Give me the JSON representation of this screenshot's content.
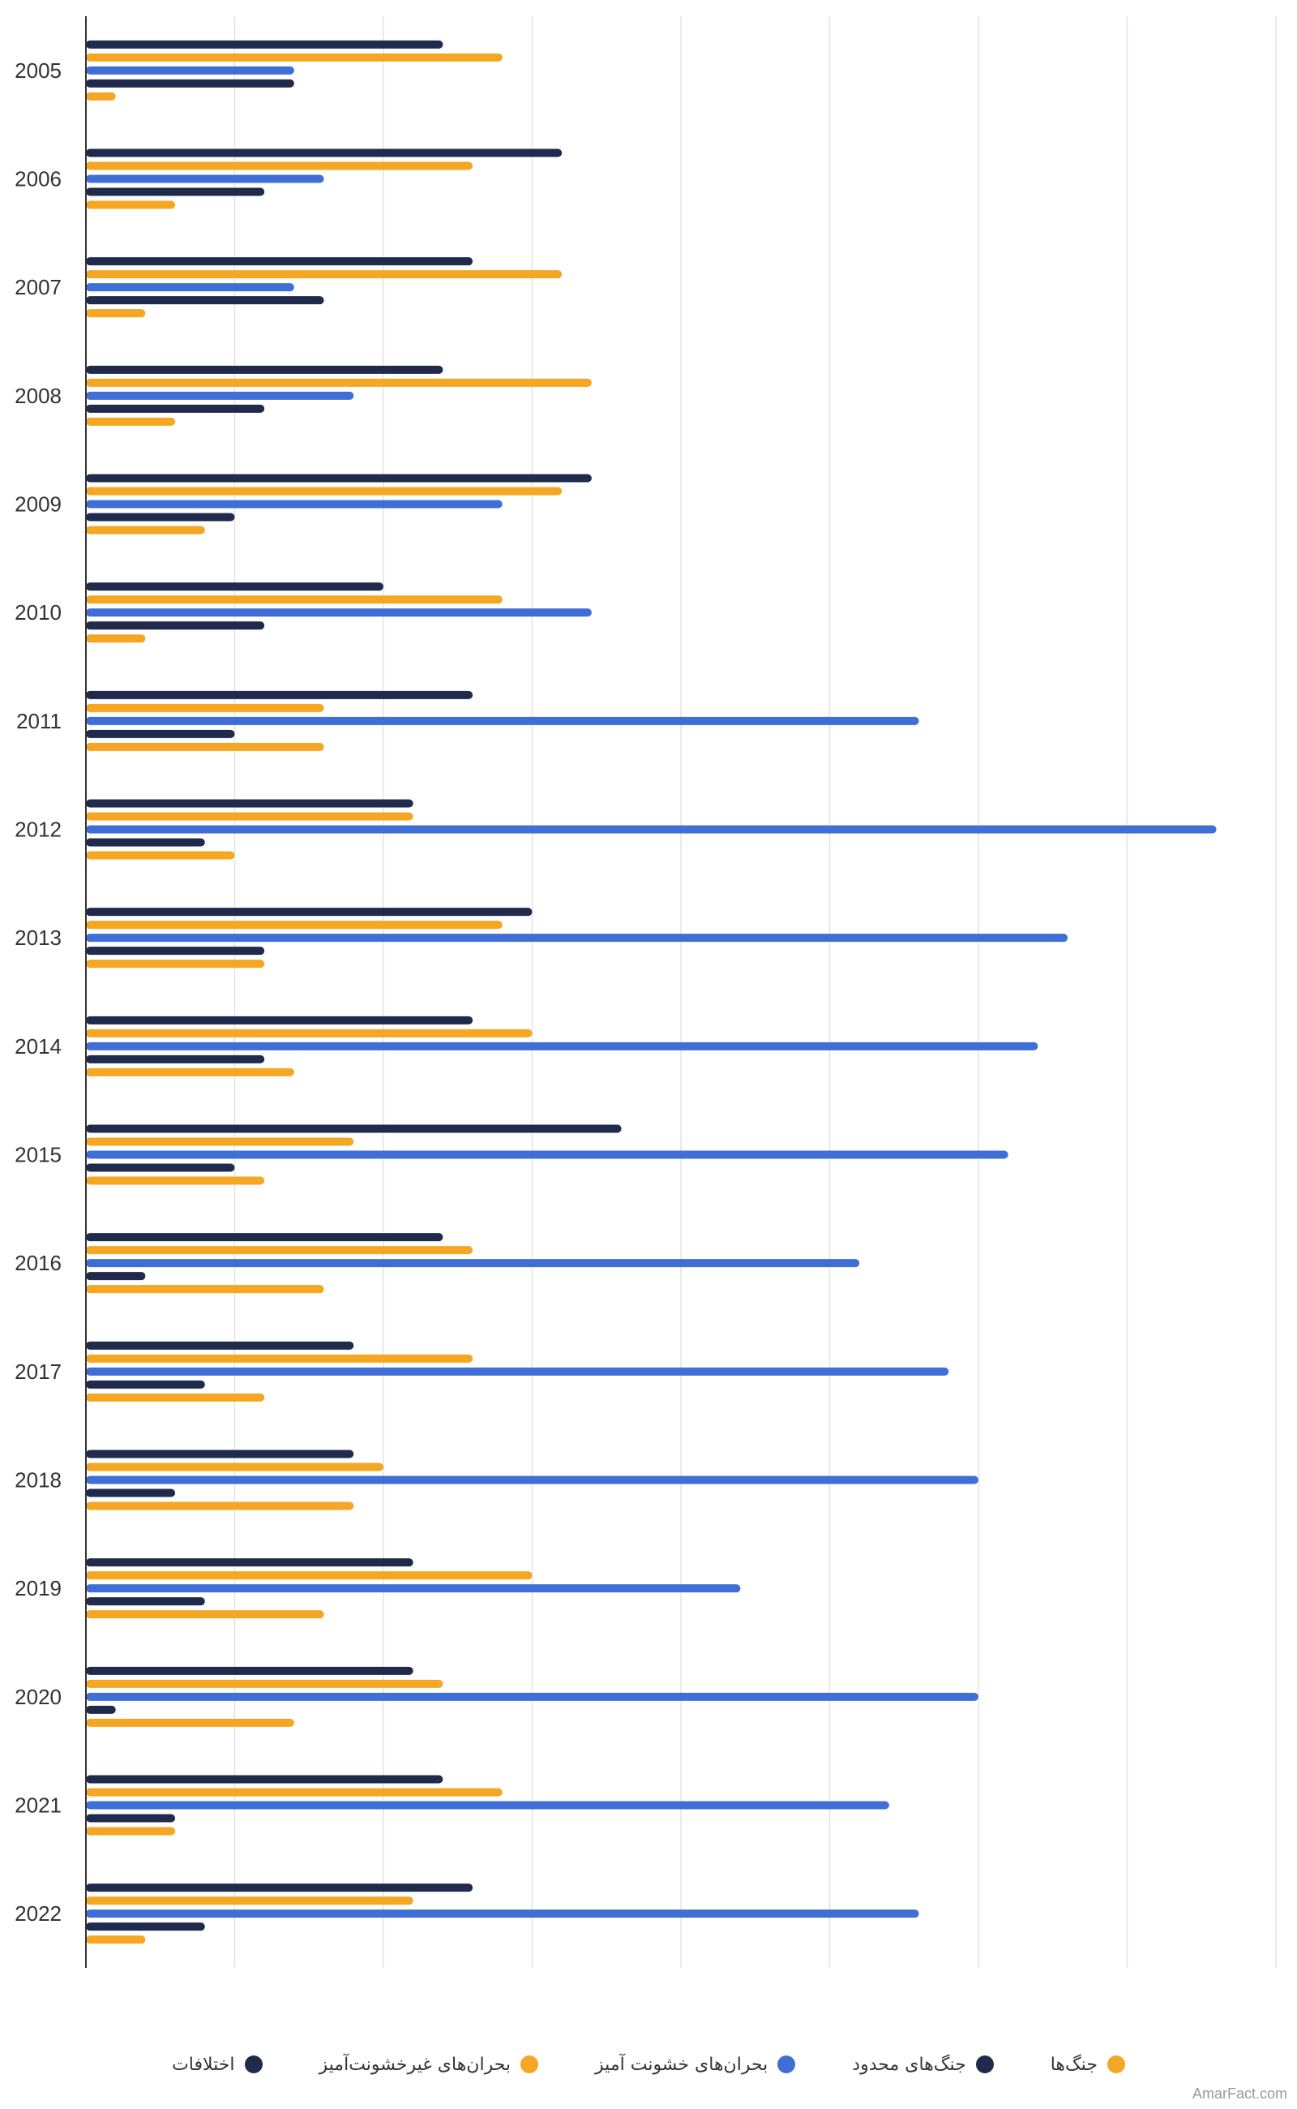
{
  "chart_data": {
    "type": "bar",
    "orientation": "horizontal",
    "categories": [
      "2005",
      "2006",
      "2007",
      "2008",
      "2009",
      "2010",
      "2011",
      "2012",
      "2013",
      "2014",
      "2015",
      "2016",
      "2017",
      "2018",
      "2019",
      "2020",
      "2021",
      "2022"
    ],
    "series": [
      {
        "name": "اختلافات",
        "color": "#1f2a4d",
        "values": [
          12,
          16,
          13,
          12,
          17,
          10,
          13,
          11,
          15,
          13,
          18,
          12,
          9,
          9,
          11,
          11,
          12,
          13
        ]
      },
      {
        "name": "بحران‌های غیرخشونت‌آمیز",
        "color": "#f5a623",
        "values": [
          14,
          13,
          16,
          17,
          16,
          14,
          8,
          11,
          14,
          15,
          9,
          13,
          13,
          10,
          15,
          12,
          14,
          11
        ]
      },
      {
        "name": "بحران‌های خشونت آمیز",
        "color": "#3f6fd6",
        "values": [
          7,
          8,
          7,
          9,
          14,
          17,
          28,
          38,
          33,
          32,
          31,
          26,
          29,
          30,
          22,
          30,
          27,
          28
        ]
      },
      {
        "name": "جنگ‌های محدود",
        "color": "#1f2a4d",
        "values": [
          7,
          6,
          8,
          6,
          5,
          6,
          5,
          4,
          6,
          6,
          5,
          2,
          4,
          3,
          4,
          1,
          3,
          4
        ]
      },
      {
        "name": "جنگ‌ها",
        "color": "#f5a623",
        "values": [
          1,
          3,
          2,
          3,
          4,
          2,
          8,
          5,
          6,
          7,
          6,
          8,
          6,
          9,
          8,
          7,
          3,
          2
        ]
      }
    ],
    "xlim": [
      0,
      40
    ],
    "xticks": [
      "0",
      "5",
      "10",
      "15",
      "20",
      "25",
      "30",
      "35",
      "40"
    ],
    "grid": true,
    "legend_position": "bottom"
  },
  "credit": "AmarFact.com"
}
